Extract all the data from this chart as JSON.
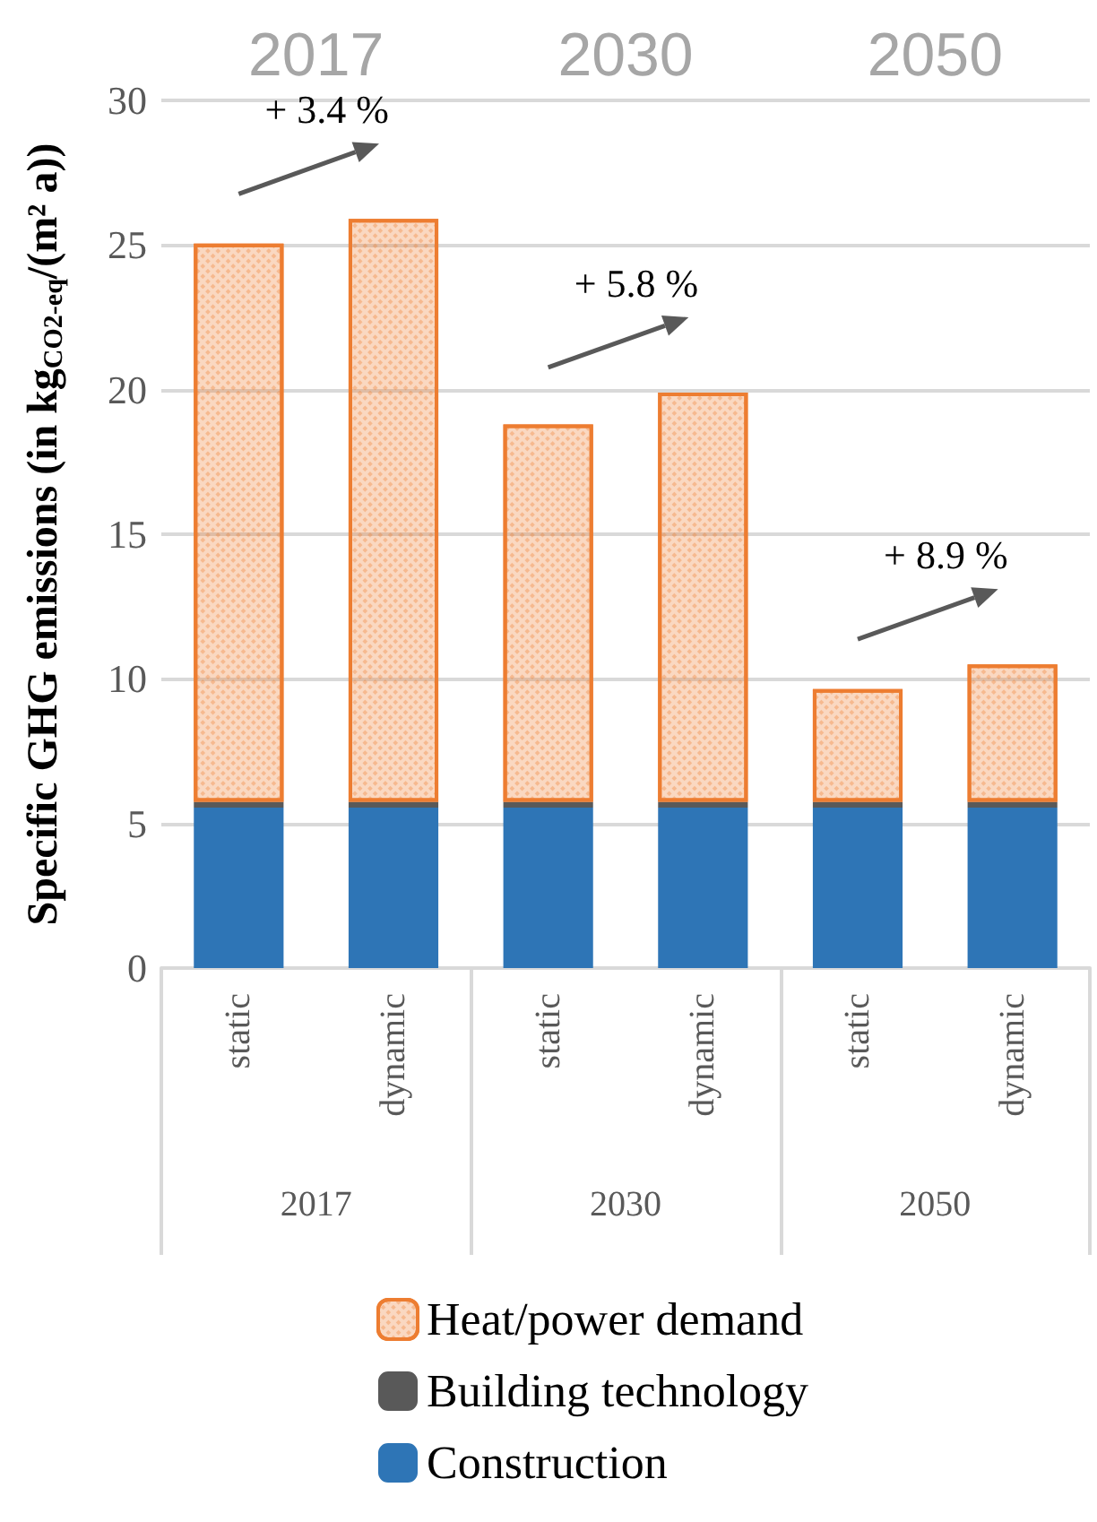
{
  "chart_data": {
    "type": "bar",
    "stacked": true,
    "ylabel": "Specific GHG emissions (in kg$_{CO2-eq}$/(m² a))",
    "categories": [
      "static",
      "dynamic",
      "static",
      "dynamic",
      "static",
      "dynamic"
    ],
    "series": [
      {
        "name": "Construction",
        "color": "#2e75b6",
        "values": [
          5.55,
          5.55,
          5.55,
          5.55,
          5.55,
          5.55
        ]
      },
      {
        "name": "Building technology",
        "color": "#595959",
        "values": [
          0.2,
          0.2,
          0.2,
          0.2,
          0.2,
          0.2
        ]
      },
      {
        "name": "Heat/power demand",
        "color": "#ed7d31",
        "values": [
          19.3,
          20.15,
          13.05,
          14.15,
          3.9,
          4.75
        ]
      }
    ],
    "ylim": [
      0,
      30
    ],
    "yticks": [
      0,
      5,
      10,
      15,
      20,
      25,
      30
    ],
    "grid": "y",
    "legend": "bottom",
    "annotations": [
      "+ 3.4 %",
      "+ 5.8 %",
      "+ 8.9 %",
      "2017",
      "2030",
      "2050",
      "2017",
      "2030",
      "2050"
    ]
  }
}
